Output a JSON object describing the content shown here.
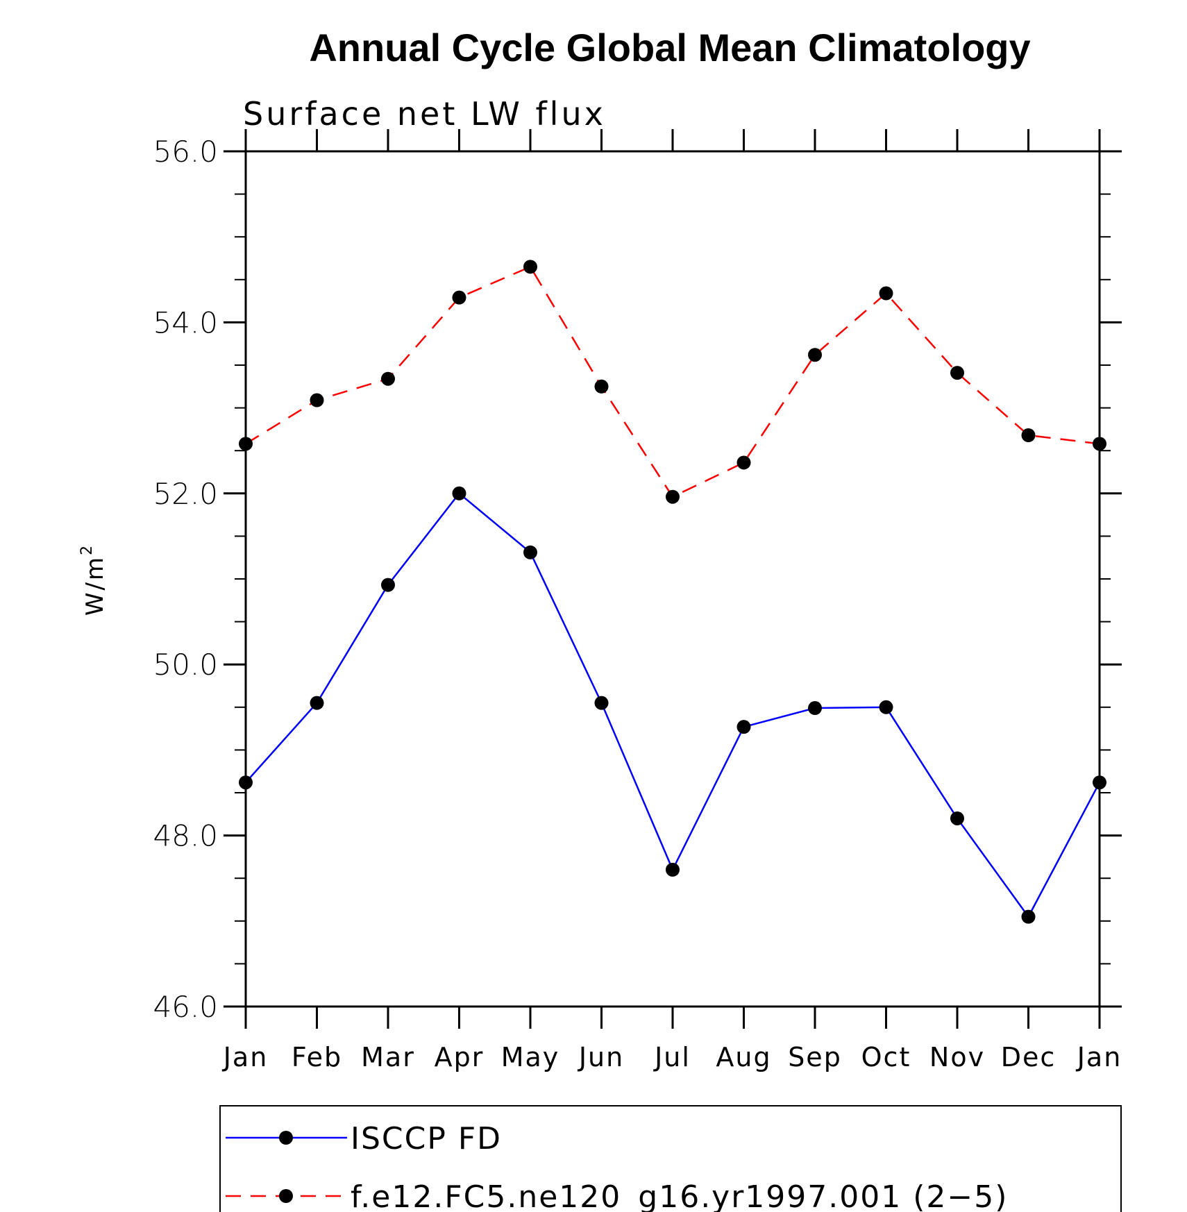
{
  "chart_data": {
    "type": "line",
    "title": "Annual Cycle Global Mean Climatology",
    "subtitle": "Surface net LW flux",
    "ylabel": "W/m",
    "ylabel_superscript": "2",
    "xlabel": "",
    "ylim": [
      46.0,
      56.0
    ],
    "yticks": [
      "46.0",
      "48.0",
      "50.0",
      "52.0",
      "54.0",
      "56.0"
    ],
    "categories": [
      "Jan",
      "Feb",
      "Mar",
      "Apr",
      "May",
      "Jun",
      "Jul",
      "Aug",
      "Sep",
      "Oct",
      "Nov",
      "Dec",
      "Jan"
    ],
    "series": [
      {
        "name": "ISCCP FD",
        "color": "#0000ff",
        "dash": "solid",
        "values": [
          48.62,
          49.55,
          50.93,
          52.0,
          51.31,
          49.55,
          47.6,
          49.27,
          49.49,
          49.5,
          48.2,
          47.05,
          48.62
        ]
      },
      {
        "name": "f.e12.FC5.ne120_g16.yr1997.001 (2−5)",
        "color": "#ff0000",
        "dash": "dashed",
        "values": [
          52.58,
          53.09,
          53.34,
          54.29,
          54.65,
          53.25,
          51.96,
          52.36,
          53.62,
          54.34,
          53.41,
          52.68,
          52.58
        ]
      }
    ],
    "legend_position": "bottom"
  }
}
